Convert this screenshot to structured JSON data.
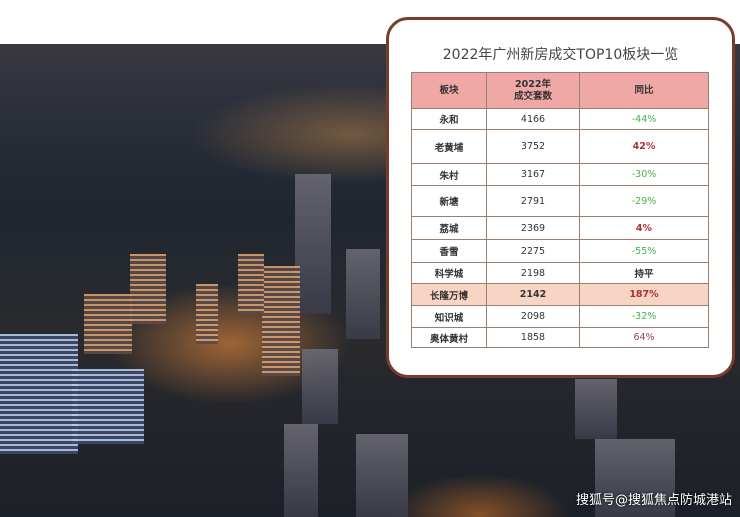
{
  "title": "2022年广州新房成交TOP10板块一览",
  "headers": [
    "板块",
    "2022年\n成交套数",
    "同比"
  ],
  "header_lines": [
    "2022年",
    "成交套数"
  ],
  "rows": [
    {
      "name": "永和",
      "count": "4166",
      "yoy": "-44%",
      "trend": "down"
    },
    {
      "name": "老黄埔",
      "count": "3752",
      "yoy": "42%",
      "trend": "up"
    },
    {
      "name": "朱村",
      "count": "3167",
      "yoy": "-30%",
      "trend": "down"
    },
    {
      "name": "新塘",
      "count": "2791",
      "yoy": "-29%",
      "trend": "down"
    },
    {
      "name": "荔城",
      "count": "2369",
      "yoy": "4%",
      "trend": "up"
    },
    {
      "name": "香雪",
      "count": "2275",
      "yoy": "-55%",
      "trend": "down"
    },
    {
      "name": "科学城",
      "count": "2198",
      "yoy": "持平",
      "trend": "flat"
    },
    {
      "name": "长隆万博",
      "count": "2142",
      "yoy": "187%",
      "trend": "up",
      "highlight": true
    },
    {
      "name": "知识城",
      "count": "2098",
      "yoy": "-32%",
      "trend": "down"
    },
    {
      "name": "奥体黄村",
      "count": "1858",
      "yoy": "64%",
      "trend": "up"
    }
  ],
  "colors": {
    "header_bg": "#f0a8a6",
    "highlight_bg": "#f8d4c4",
    "negative": "#4caf50",
    "positive": "#b0303a",
    "card_border": "#7a3a2c"
  },
  "watermark": "搜狐号@搜狐焦点防城港站"
}
